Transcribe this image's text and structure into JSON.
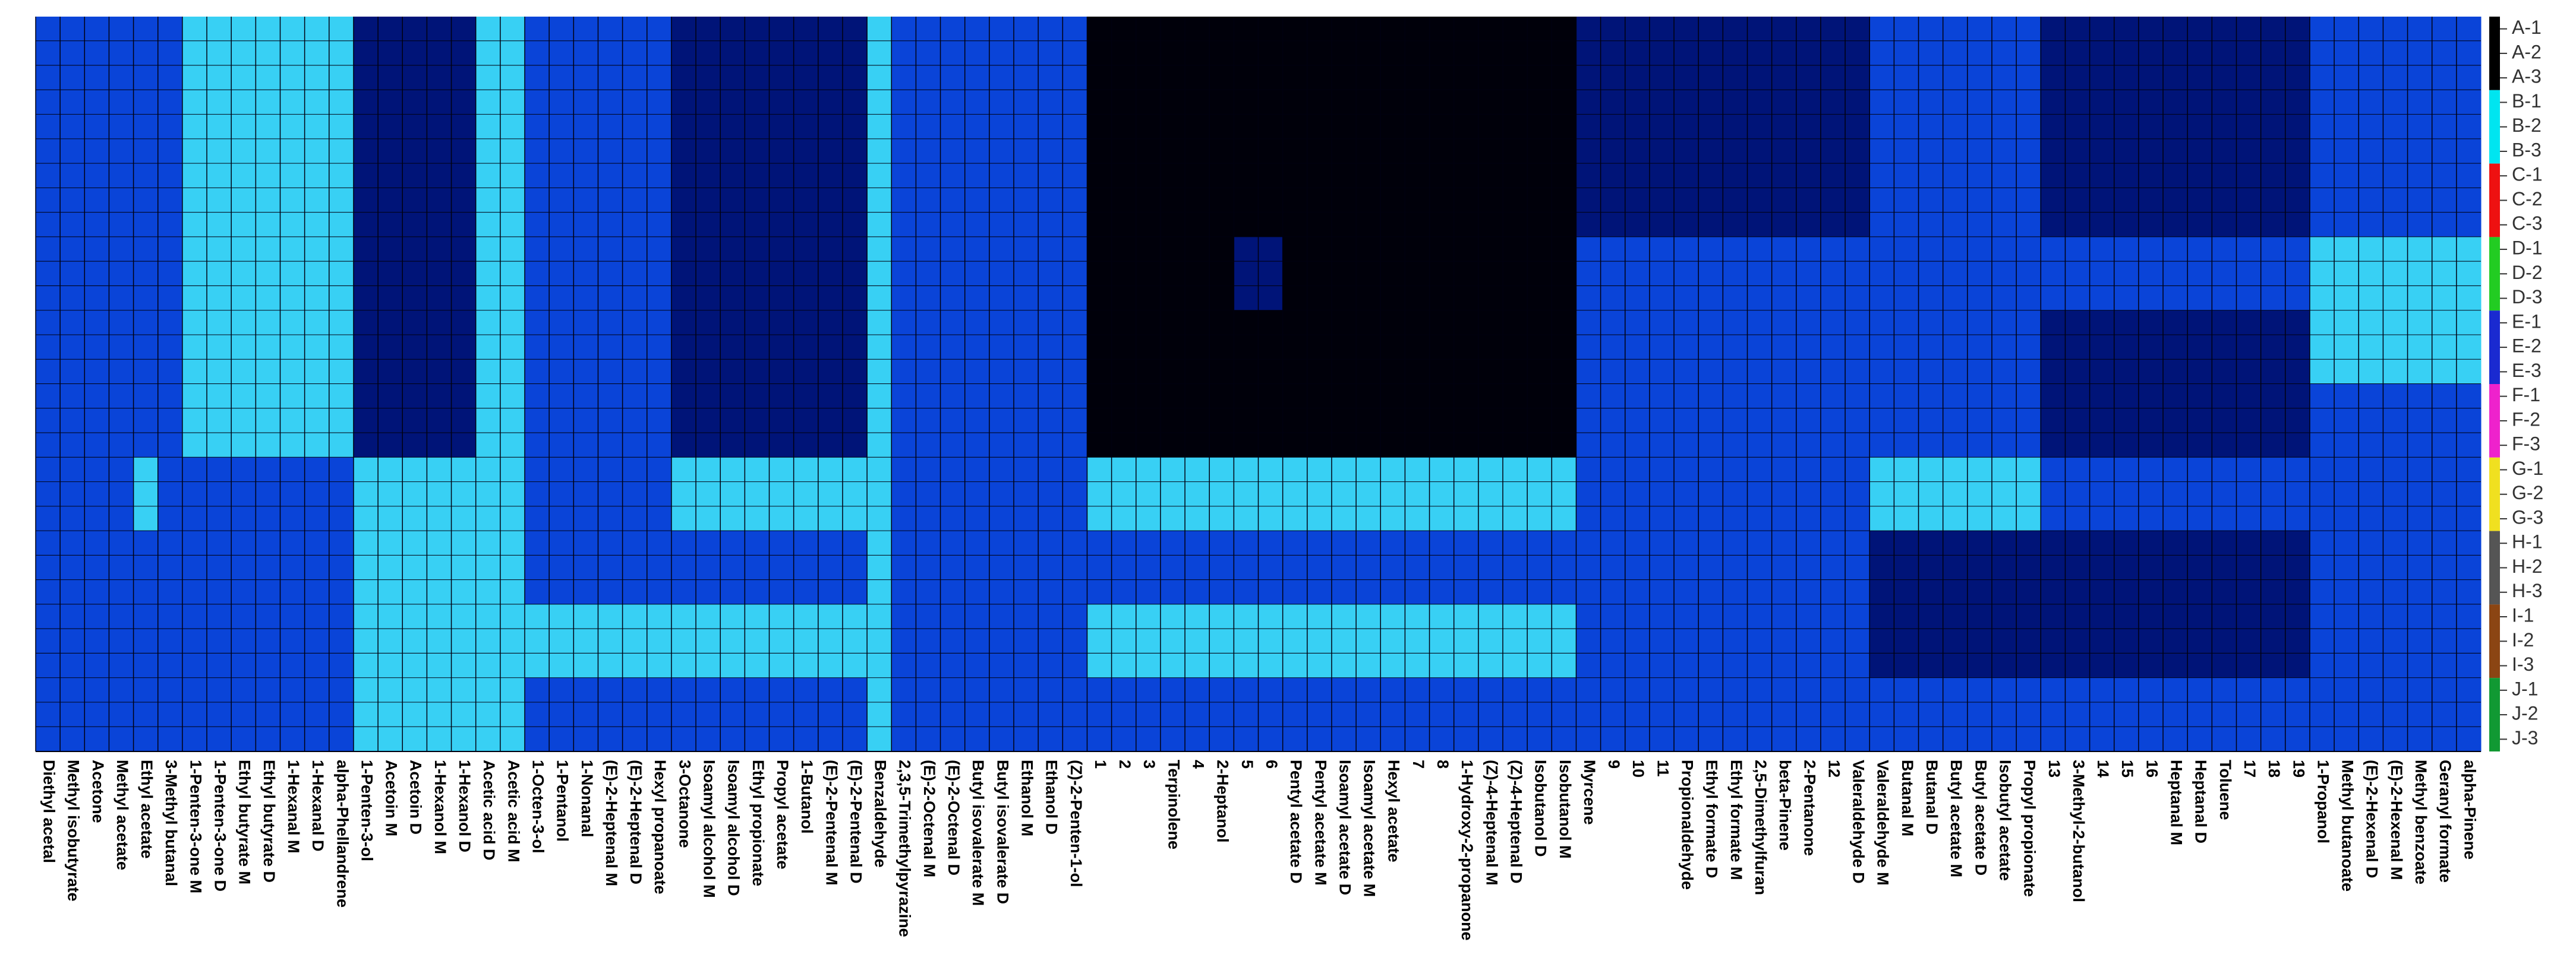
{
  "chart_data": {
    "type": "heatmap",
    "x_categories": [
      "Diethyl acetal",
      "Methyl isobutyrate",
      "Acetone",
      "Methyl acetate",
      "Ethyl acetate",
      "3-Methyl butanal",
      "1-Penten-3-one M",
      "1-Penten-3-one D",
      "Ethyl butyrate M",
      "Ethyl butyrate D",
      "1-Hexanal M",
      "1-Hexanal D",
      "alpha-Phellandrene",
      "1-Penten-3-ol",
      "Acetoin M",
      "Acetoin D",
      "1-Hexanol M",
      "1-Hexanol D",
      "Acetic acid D",
      "Acetic acid M",
      "1-Octen-3-ol",
      "1-Pentanol",
      "1-Nonanal",
      "(E)-2-Heptenal M",
      "(E)-2-Heptenal D",
      "Hexyl propanoate",
      "3-Octanone",
      "Isoamyl alcohol M",
      "Isoamyl alcohol D",
      "Ethyl propionate",
      "Propyl acetate",
      "1-Butanol",
      "(E)-2-Pentenal M",
      "(E)-2-Pentenal D",
      "Benzaldehyde",
      "2,3,5-Trimethylpyrazine",
      "(E)-2-Octenal M",
      "(E)-2-Octenal D",
      "Butyl isovalerate M",
      "Butyl isovalerate D",
      "Ethanol M",
      "Ethanol D",
      "(Z)-2-Penten-1-ol",
      "1",
      "2",
      "3",
      "Terpinolene",
      "4",
      "2-Heptanol",
      "5",
      "6",
      "Pentyl acetate D",
      "Pentyl acetate M",
      "Isoamyl acetate D",
      "Isoamyl acetate M",
      "Hexyl acetate",
      "7",
      "8",
      "1-Hydroxy-2-propanone",
      "(Z)-4-Heptenal M",
      "(Z)-4-Heptenal D",
      "Isobutanol D",
      "Isobutanol M",
      "Myrcene",
      "9",
      "10",
      "11",
      "Propionaldehyde",
      "Ethyl formate D",
      "Ethyl formate M",
      "2,5-Dimethylfuran",
      "beta-Pinene",
      "2-Pentanone",
      "12",
      "Valeraldehyde D",
      "Valeraldehyde M",
      "Butanal M",
      "Butanal D",
      "Butyl acetate M",
      "Butyl acetate D",
      "Isobutyl acetate",
      "Propyl propionate",
      "13",
      "3-Methyl-2-butanol",
      "14",
      "15",
      "16",
      "Heptanal M",
      "Heptanal D",
      "Toluene",
      "17",
      "18",
      "19",
      "1-Propanol",
      "Methyl butanoate",
      "(E)-2-Hexenal D",
      "(E)-2-Hexenal M",
      "Methyl benzoate",
      "Geranyl formate",
      "alpha-Pinene"
    ],
    "colormap": [
      "#00000a",
      "#001478",
      "#0a44d8",
      "#38d0f4"
    ],
    "groups": [
      {
        "color": "#000000",
        "rows": [
          "A-1",
          "A-2",
          "A-3"
        ],
        "values": [
          2,
          2,
          2,
          2,
          2,
          2,
          3,
          3,
          3,
          3,
          3,
          3,
          3,
          1,
          1,
          1,
          1,
          1,
          3,
          3,
          2,
          2,
          2,
          2,
          2,
          2,
          1,
          1,
          1,
          1,
          1,
          1,
          1,
          1,
          3,
          2,
          2,
          2,
          2,
          2,
          2,
          2,
          2,
          0,
          0,
          0,
          0,
          0,
          0,
          0,
          0,
          0,
          0,
          0,
          0,
          0,
          0,
          0,
          0,
          0,
          0,
          0,
          0,
          1,
          1,
          1,
          1,
          1,
          1,
          1,
          1,
          1,
          1,
          1,
          1,
          2,
          2,
          2,
          2,
          2,
          2,
          2,
          1,
          1,
          1,
          1,
          1,
          1,
          1,
          1,
          1,
          1,
          1,
          2,
          2,
          2,
          2,
          2,
          2,
          2
        ]
      },
      {
        "color": "#00e5f0",
        "rows": [
          "B-1",
          "B-2",
          "B-3"
        ],
        "values": [
          2,
          2,
          2,
          2,
          2,
          2,
          3,
          3,
          3,
          3,
          3,
          3,
          3,
          1,
          1,
          1,
          1,
          1,
          3,
          3,
          2,
          2,
          2,
          2,
          2,
          2,
          1,
          1,
          1,
          1,
          1,
          1,
          1,
          1,
          3,
          2,
          2,
          2,
          2,
          2,
          2,
          2,
          2,
          0,
          0,
          0,
          0,
          0,
          0,
          0,
          0,
          0,
          0,
          0,
          0,
          0,
          0,
          0,
          0,
          0,
          0,
          0,
          0,
          1,
          1,
          1,
          1,
          1,
          1,
          1,
          1,
          1,
          1,
          1,
          1,
          2,
          2,
          2,
          2,
          2,
          2,
          2,
          1,
          1,
          1,
          1,
          1,
          1,
          1,
          1,
          1,
          1,
          1,
          2,
          2,
          2,
          2,
          2,
          2,
          2
        ]
      },
      {
        "color": "#ee1111",
        "rows": [
          "C-1",
          "C-2",
          "C-3"
        ],
        "values": [
          2,
          2,
          2,
          2,
          2,
          2,
          3,
          3,
          3,
          3,
          3,
          3,
          3,
          1,
          1,
          1,
          1,
          1,
          3,
          3,
          2,
          2,
          2,
          2,
          2,
          2,
          1,
          1,
          1,
          1,
          1,
          1,
          1,
          1,
          3,
          2,
          2,
          2,
          2,
          2,
          2,
          2,
          2,
          0,
          0,
          0,
          0,
          0,
          0,
          0,
          0,
          0,
          0,
          0,
          0,
          0,
          0,
          0,
          0,
          0,
          0,
          0,
          0,
          1,
          1,
          1,
          1,
          1,
          1,
          1,
          1,
          1,
          1,
          1,
          1,
          2,
          2,
          2,
          2,
          2,
          2,
          2,
          1,
          1,
          1,
          1,
          1,
          1,
          1,
          1,
          1,
          1,
          1,
          2,
          2,
          2,
          2,
          2,
          2,
          2
        ]
      },
      {
        "color": "#22cc22",
        "rows": [
          "D-1",
          "D-2",
          "D-3"
        ],
        "values": [
          2,
          2,
          2,
          2,
          2,
          2,
          3,
          3,
          3,
          3,
          3,
          3,
          3,
          1,
          1,
          1,
          1,
          1,
          3,
          3,
          2,
          2,
          2,
          2,
          2,
          2,
          1,
          1,
          1,
          1,
          1,
          1,
          1,
          1,
          3,
          2,
          2,
          2,
          2,
          2,
          2,
          2,
          2,
          0,
          0,
          0,
          0,
          0,
          0,
          1,
          1,
          0,
          0,
          0,
          0,
          0,
          0,
          0,
          0,
          0,
          0,
          0,
          0,
          2,
          2,
          2,
          2,
          2,
          2,
          2,
          2,
          2,
          2,
          2,
          2,
          2,
          2,
          2,
          2,
          2,
          2,
          2,
          2,
          2,
          2,
          2,
          2,
          2,
          2,
          2,
          2,
          2,
          2,
          3,
          3,
          3,
          3,
          3,
          3,
          3
        ]
      },
      {
        "color": "#1a2ad0",
        "rows": [
          "E-1",
          "E-2",
          "E-3"
        ],
        "values": [
          2,
          2,
          2,
          2,
          2,
          2,
          3,
          3,
          3,
          3,
          3,
          3,
          3,
          1,
          1,
          1,
          1,
          1,
          3,
          3,
          2,
          2,
          2,
          2,
          2,
          2,
          1,
          1,
          1,
          1,
          1,
          1,
          1,
          1,
          3,
          2,
          2,
          2,
          2,
          2,
          2,
          2,
          2,
          0,
          0,
          0,
          0,
          0,
          0,
          0,
          0,
          0,
          0,
          0,
          0,
          0,
          0,
          0,
          0,
          0,
          0,
          0,
          0,
          2,
          2,
          2,
          2,
          2,
          2,
          2,
          2,
          2,
          2,
          2,
          2,
          2,
          2,
          2,
          2,
          2,
          2,
          2,
          1,
          1,
          1,
          1,
          1,
          1,
          1,
          1,
          1,
          1,
          1,
          3,
          3,
          3,
          3,
          3,
          3,
          3
        ]
      },
      {
        "color": "#ee22cc",
        "rows": [
          "F-1",
          "F-2",
          "F-3"
        ],
        "values": [
          2,
          2,
          2,
          2,
          2,
          2,
          3,
          3,
          3,
          3,
          3,
          3,
          3,
          1,
          1,
          1,
          1,
          1,
          3,
          3,
          2,
          2,
          2,
          2,
          2,
          2,
          1,
          1,
          1,
          1,
          1,
          1,
          1,
          1,
          3,
          2,
          2,
          2,
          2,
          2,
          2,
          2,
          2,
          0,
          0,
          0,
          0,
          0,
          0,
          0,
          0,
          0,
          0,
          0,
          0,
          0,
          0,
          0,
          0,
          0,
          0,
          0,
          0,
          2,
          2,
          2,
          2,
          2,
          2,
          2,
          2,
          2,
          2,
          2,
          2,
          2,
          2,
          2,
          2,
          2,
          2,
          2,
          1,
          1,
          1,
          1,
          1,
          1,
          1,
          1,
          1,
          1,
          1,
          2,
          2,
          2,
          2,
          2,
          2,
          2
        ]
      },
      {
        "color": "#f0e020",
        "rows": [
          "G-1",
          "G-2",
          "G-3"
        ],
        "values": [
          2,
          2,
          2,
          2,
          3,
          2,
          2,
          2,
          2,
          2,
          2,
          2,
          2,
          3,
          3,
          3,
          3,
          3,
          3,
          3,
          2,
          2,
          2,
          2,
          2,
          2,
          3,
          3,
          3,
          3,
          3,
          3,
          3,
          3,
          3,
          2,
          2,
          2,
          2,
          2,
          2,
          2,
          2,
          3,
          3,
          3,
          3,
          3,
          3,
          3,
          3,
          3,
          3,
          3,
          3,
          3,
          3,
          3,
          3,
          3,
          3,
          3,
          3,
          2,
          2,
          2,
          2,
          2,
          2,
          2,
          2,
          2,
          2,
          2,
          2,
          3,
          3,
          3,
          3,
          3,
          3,
          3,
          2,
          2,
          2,
          2,
          2,
          2,
          2,
          2,
          2,
          2,
          2,
          2,
          2,
          2,
          2,
          2,
          2,
          2
        ]
      },
      {
        "color": "#555555",
        "rows": [
          "H-1",
          "H-2",
          "H-3"
        ],
        "values": [
          2,
          2,
          2,
          2,
          2,
          2,
          2,
          2,
          2,
          2,
          2,
          2,
          2,
          3,
          3,
          3,
          3,
          3,
          3,
          3,
          2,
          2,
          2,
          2,
          2,
          2,
          2,
          2,
          2,
          2,
          2,
          2,
          2,
          2,
          3,
          2,
          2,
          2,
          2,
          2,
          2,
          2,
          2,
          2,
          2,
          2,
          2,
          2,
          2,
          2,
          2,
          2,
          2,
          2,
          2,
          2,
          2,
          2,
          2,
          2,
          2,
          2,
          2,
          2,
          2,
          2,
          2,
          2,
          2,
          2,
          2,
          2,
          2,
          2,
          2,
          1,
          1,
          1,
          1,
          1,
          1,
          1,
          1,
          1,
          1,
          1,
          1,
          1,
          1,
          1,
          1,
          1,
          1,
          2,
          2,
          2,
          2,
          2,
          2,
          2
        ]
      },
      {
        "color": "#8b4513",
        "rows": [
          "I-1",
          "I-2",
          "I-3"
        ],
        "values": [
          2,
          2,
          2,
          2,
          2,
          2,
          2,
          2,
          2,
          2,
          2,
          2,
          2,
          3,
          3,
          3,
          3,
          3,
          3,
          3,
          3,
          3,
          3,
          3,
          3,
          3,
          3,
          3,
          3,
          3,
          3,
          3,
          3,
          3,
          3,
          2,
          2,
          2,
          2,
          2,
          2,
          2,
          2,
          3,
          3,
          3,
          3,
          3,
          3,
          3,
          3,
          3,
          3,
          3,
          3,
          3,
          3,
          3,
          3,
          3,
          3,
          3,
          3,
          2,
          2,
          2,
          2,
          2,
          2,
          2,
          2,
          2,
          2,
          2,
          2,
          1,
          1,
          1,
          1,
          1,
          1,
          1,
          1,
          1,
          1,
          1,
          1,
          1,
          1,
          1,
          1,
          1,
          1,
          2,
          2,
          2,
          2,
          2,
          2,
          2
        ]
      },
      {
        "color": "#119933",
        "rows": [
          "J-1",
          "J-2",
          "J-3"
        ],
        "values": [
          2,
          2,
          2,
          2,
          2,
          2,
          2,
          2,
          2,
          2,
          2,
          2,
          2,
          3,
          3,
          3,
          3,
          3,
          3,
          3,
          2,
          2,
          2,
          2,
          2,
          2,
          2,
          2,
          2,
          2,
          2,
          2,
          2,
          2,
          3,
          2,
          2,
          2,
          2,
          2,
          2,
          2,
          2,
          2,
          2,
          2,
          2,
          2,
          2,
          2,
          2,
          2,
          2,
          2,
          2,
          2,
          2,
          2,
          2,
          2,
          2,
          2,
          2,
          2,
          2,
          2,
          2,
          2,
          2,
          2,
          2,
          2,
          2,
          2,
          2,
          2,
          2,
          2,
          2,
          2,
          2,
          2,
          2,
          2,
          2,
          2,
          2,
          2,
          2,
          2,
          2,
          2,
          2,
          2,
          2,
          2,
          2,
          2,
          2,
          2
        ]
      }
    ]
  }
}
